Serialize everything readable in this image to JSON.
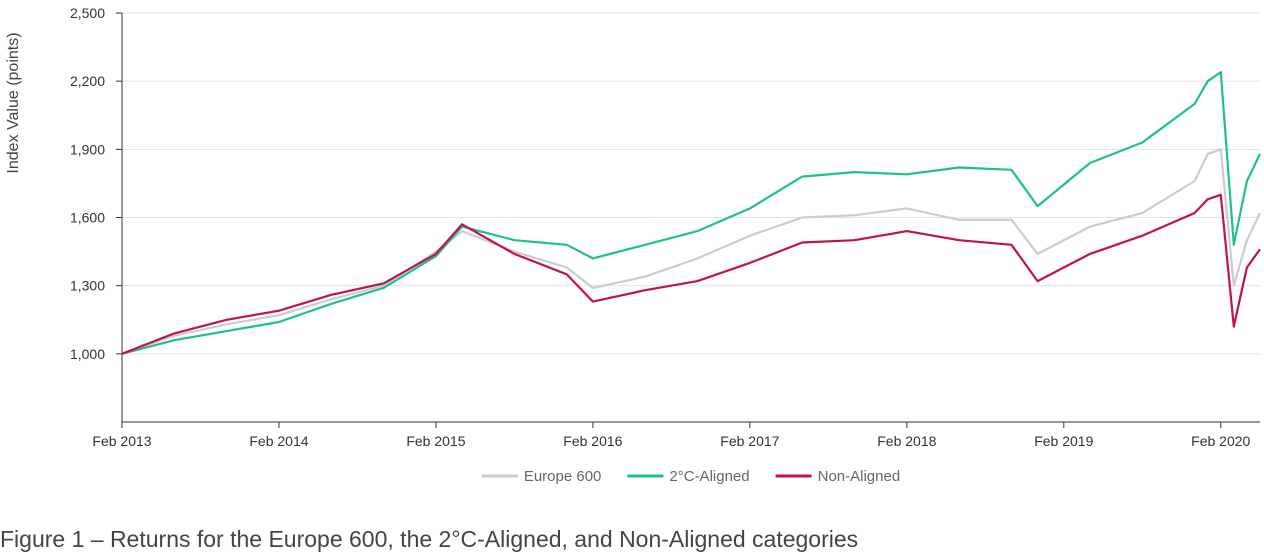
{
  "caption": "Figure 1 – Returns for the Europe 600, the 2°C-Aligned, and Non-Aligned categories",
  "chart_data": {
    "type": "line",
    "title": "",
    "xlabel": "",
    "ylabel": "Index Value (points)",
    "ylim": [
      700,
      2500
    ],
    "yticks": [
      1000,
      1300,
      1600,
      1900,
      2200,
      2500
    ],
    "ytick_labels": [
      "1,000",
      "1,300",
      "1,600",
      "1,900",
      "2,200",
      "2,500"
    ],
    "xticks": [
      "2013-02",
      "2014-02",
      "2015-02",
      "2016-02",
      "2017-02",
      "2018-02",
      "2019-02",
      "2020-02"
    ],
    "xtick_labels": [
      "Feb 2013",
      "Feb 2014",
      "Feb 2015",
      "Feb 2016",
      "Feb 2017",
      "Feb 2018",
      "Feb 2019",
      "Feb 2020"
    ],
    "xlim": [
      "2013-02",
      "2020-05"
    ],
    "grid": true,
    "legend_position": "bottom-center",
    "series": [
      {
        "name": "Europe 600",
        "color": "#c8cecc",
        "x": [
          "2013-02",
          "2013-06",
          "2013-10",
          "2014-02",
          "2014-06",
          "2014-10",
          "2015-02",
          "2015-04",
          "2015-08",
          "2015-12",
          "2016-02",
          "2016-06",
          "2016-10",
          "2017-02",
          "2017-06",
          "2017-10",
          "2018-02",
          "2018-06",
          "2018-10",
          "2018-12",
          "2019-04",
          "2019-08",
          "2019-12",
          "2020-01",
          "2020-02",
          "2020-03",
          "2020-04",
          "2020-05"
        ],
        "y": [
          1000,
          1080,
          1130,
          1170,
          1240,
          1300,
          1450,
          1540,
          1450,
          1380,
          1290,
          1340,
          1420,
          1520,
          1600,
          1610,
          1640,
          1590,
          1590,
          1440,
          1560,
          1620,
          1760,
          1880,
          1900,
          1300,
          1500,
          1620
        ]
      },
      {
        "name": "2°C-Aligned",
        "color": "#1ec08b",
        "x": [
          "2013-02",
          "2013-06",
          "2013-10",
          "2014-02",
          "2014-06",
          "2014-10",
          "2015-02",
          "2015-04",
          "2015-08",
          "2015-12",
          "2016-02",
          "2016-06",
          "2016-10",
          "2017-02",
          "2017-06",
          "2017-10",
          "2018-02",
          "2018-06",
          "2018-10",
          "2018-12",
          "2019-04",
          "2019-08",
          "2019-12",
          "2020-01",
          "2020-02",
          "2020-03",
          "2020-04",
          "2020-05"
        ],
        "y": [
          1000,
          1060,
          1100,
          1140,
          1220,
          1290,
          1430,
          1560,
          1500,
          1480,
          1420,
          1480,
          1540,
          1640,
          1780,
          1800,
          1790,
          1820,
          1810,
          1650,
          1840,
          1930,
          2100,
          2200,
          2240,
          1480,
          1760,
          1880
        ]
      },
      {
        "name": "Non-Aligned",
        "color": "#c0134a",
        "x": [
          "2013-02",
          "2013-06",
          "2013-10",
          "2014-02",
          "2014-06",
          "2014-10",
          "2015-02",
          "2015-04",
          "2015-08",
          "2015-12",
          "2016-02",
          "2016-06",
          "2016-10",
          "2017-02",
          "2017-06",
          "2017-10",
          "2018-02",
          "2018-06",
          "2018-10",
          "2018-12",
          "2019-04",
          "2019-08",
          "2019-12",
          "2020-01",
          "2020-02",
          "2020-03",
          "2020-04",
          "2020-05"
        ],
        "y": [
          1000,
          1090,
          1150,
          1190,
          1260,
          1310,
          1440,
          1570,
          1440,
          1350,
          1230,
          1280,
          1320,
          1400,
          1490,
          1500,
          1540,
          1500,
          1480,
          1320,
          1440,
          1520,
          1620,
          1680,
          1700,
          1120,
          1380,
          1460
        ]
      }
    ]
  }
}
